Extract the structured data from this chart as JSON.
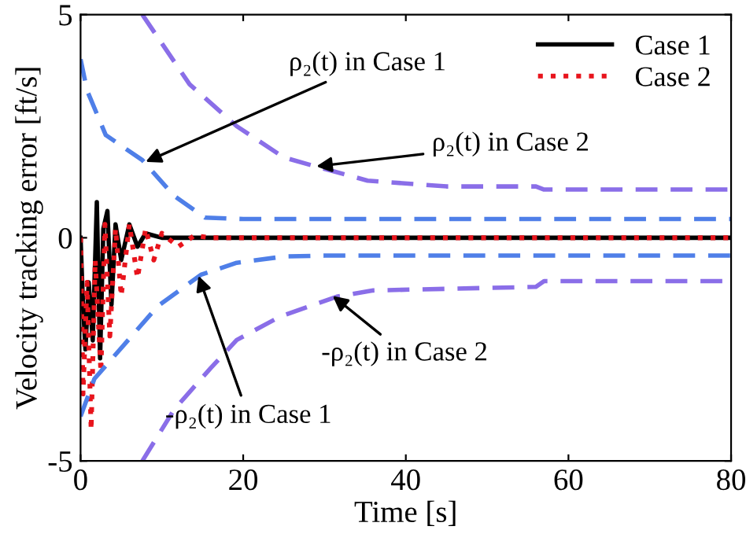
{
  "chart_data": {
    "type": "line",
    "xlabel": "Time [s]",
    "ylabel": "Velocity tracking error [ft/s]",
    "xlim": [
      0,
      80
    ],
    "ylim": [
      -5,
      5
    ],
    "xticks": [
      0,
      20,
      40,
      60,
      80
    ],
    "yticks": [
      -5,
      0,
      5
    ],
    "grid": false,
    "legend": "top right",
    "series": [
      {
        "name": "Case 1",
        "color": "#000000",
        "line_style": "solid",
        "x": [
          0,
          0.3,
          0.6,
          1,
          1.5,
          2,
          2.4,
          2.8,
          3.3,
          3.8,
          4.3,
          5,
          6,
          7,
          8,
          10,
          80
        ],
        "values": [
          0,
          -1.5,
          -2.5,
          -1.0,
          -2.3,
          0.8,
          -2.7,
          0.2,
          0.6,
          -1.5,
          0.3,
          -0.5,
          0.3,
          -0.2,
          0.1,
          0,
          0
        ]
      },
      {
        "name": "Case 2",
        "color": "#e8141c",
        "line_style": "dotted",
        "x": [
          0,
          0.3,
          0.8,
          1.3,
          1.8,
          2.5,
          3,
          3.6,
          4.3,
          5,
          6,
          7,
          8,
          9,
          10,
          12,
          14,
          16,
          80
        ],
        "values": [
          0,
          -3.5,
          -1,
          -4.3,
          -0.5,
          -3,
          0.3,
          -2.2,
          0.2,
          -1.3,
          0.3,
          -0.9,
          0.2,
          -0.5,
          0.1,
          -0.2,
          0.05,
          0,
          0
        ]
      },
      {
        "color": "#4f7fe8",
        "line_style": "dashed",
        "x": [
          0,
          0.8,
          3.1,
          7.6,
          11.5,
          15.3,
          20,
          30,
          80
        ],
        "values": [
          4.0,
          3.3,
          2.3,
          1.74,
          0.94,
          0.45,
          0.42,
          0.42,
          0.42
        ]
      },
      {
        "color": "#4f7fe8",
        "line_style": "dashed",
        "x": [
          0,
          1.7,
          6.2,
          9.5,
          14.8,
          19.2,
          25,
          30,
          80
        ],
        "values": [
          -4.0,
          -3.16,
          -2.22,
          -1.53,
          -0.83,
          -0.56,
          -0.42,
          -0.4,
          -0.4
        ]
      },
      {
        "color": "#8a6ee8",
        "line_style": "dashed",
        "x": [
          7.6,
          13.4,
          19.2,
          25,
          28.9,
          35.3,
          45,
          56,
          57,
          80
        ],
        "values": [
          5.0,
          3.44,
          2.5,
          1.8,
          1.6,
          1.28,
          1.15,
          1.15,
          1.08,
          1.08
        ]
      },
      {
        "color": "#8a6ee8",
        "line_style": "dashed",
        "x": [
          7.6,
          11.5,
          16,
          19.2,
          24.5,
          31.5,
          36,
          56,
          57,
          80
        ],
        "values": [
          -5.0,
          -3.85,
          -2.92,
          -2.29,
          -1.77,
          -1.32,
          -1.18,
          -1.1,
          -0.97,
          -0.97
        ]
      }
    ],
    "annotations": [
      {
        "text": "ρ₂(t) in Case 1",
        "x": 8,
        "y": 1.7
      },
      {
        "text": "ρ₂(t) in Case 2",
        "x": 29,
        "y": 1.6
      },
      {
        "text": "-ρ₂(t) in Case 1",
        "x": 14.5,
        "y": -0.85
      },
      {
        "text": "-ρ₂(t) in Case 2",
        "x": 31,
        "y": -1.3
      }
    ]
  }
}
